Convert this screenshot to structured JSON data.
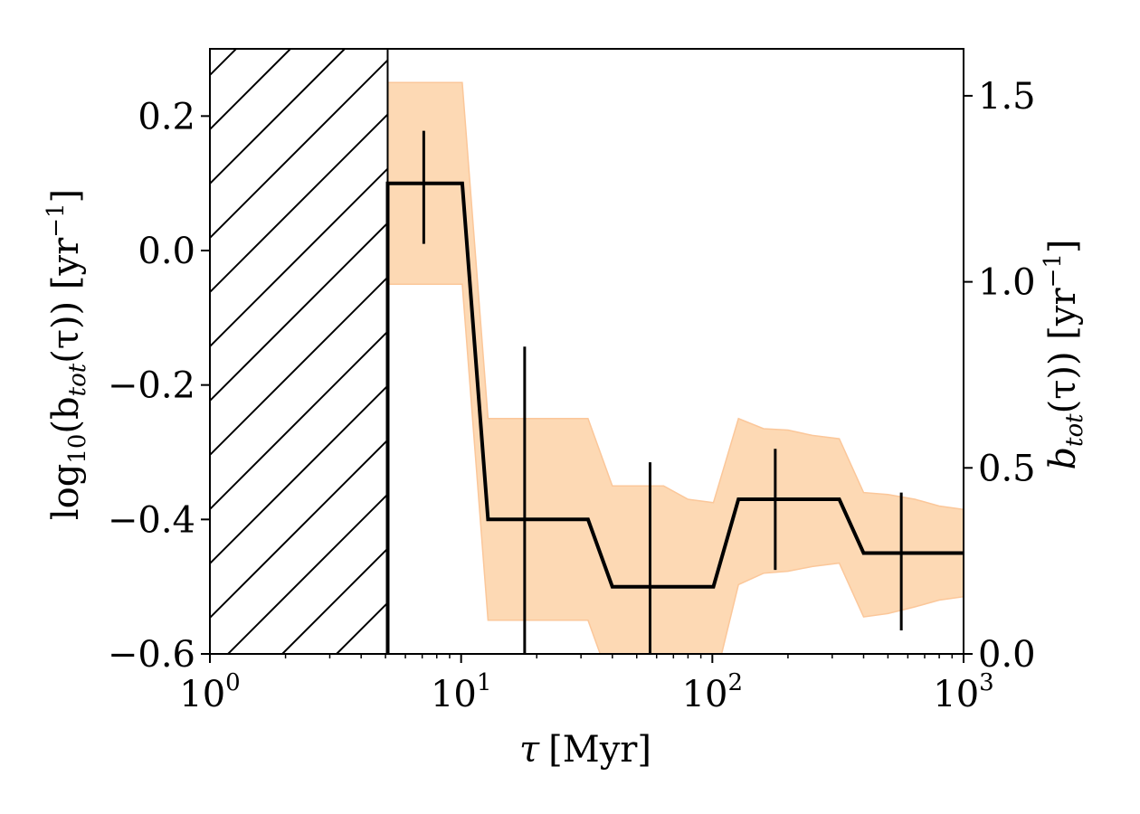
{
  "chart_data": {
    "type": "line",
    "xscale": "log",
    "xlim": [
      1,
      1000
    ],
    "ylim": [
      -0.6,
      0.3
    ],
    "y2lim": [
      0,
      1.6262
    ],
    "x_ticks": [
      1,
      10,
      100,
      1000
    ],
    "x_tick_labels": [
      "10",
      "10",
      "10",
      "10"
    ],
    "x_tick_exponents": [
      "0",
      "1",
      "2",
      "3"
    ],
    "y_ticks": [
      0.2,
      0.0,
      -0.2,
      -0.4,
      -0.6
    ],
    "y_tick_labels": [
      "0.2",
      "0.0",
      "−0.2",
      "−0.4",
      "−0.6"
    ],
    "y2_ticks": [
      1.5,
      1.0,
      0.5,
      0.0
    ],
    "y2_tick_labels": [
      "1.5",
      "1.0",
      "0.5",
      "0.0"
    ],
    "xlabel_main": "τ",
    "xlabel_unit": "[Myr]",
    "ylabel_prefix": "log",
    "ylabel_sub": "10",
    "ylabel_mid": "(b",
    "ylabel_sub2": "tot",
    "ylabel_end": "(τ)) [yr",
    "ylabel_exp": "−1",
    "ylabel_close": "]",
    "y2label_main": "b",
    "y2label_sub": "tot",
    "y2label_end": "(τ)) [yr",
    "y2label_exp": "−1",
    "y2label_close": "]",
    "excluded_region": {
      "x_from": 1,
      "x_to": 5.1,
      "hatch": true
    },
    "step_line": {
      "x": [
        5.1,
        10.1,
        12.8,
        32,
        40,
        64,
        80,
        101,
        127,
        320,
        400,
        1000
      ],
      "y": [
        0.1,
        0.1,
        -0.4,
        -0.4,
        -0.5,
        -0.5,
        -0.5,
        -0.5,
        -0.37,
        -0.37,
        -0.45,
        -0.45
      ]
    },
    "band": {
      "x": [
        5.1,
        10.1,
        12.8,
        32,
        40,
        64,
        80,
        101,
        127,
        160,
        200,
        250,
        320,
        400,
        500,
        640,
        800,
        1000
      ],
      "upper": [
        0.25,
        0.25,
        -0.25,
        -0.25,
        -0.35,
        -0.35,
        -0.37,
        -0.375,
        -0.25,
        -0.265,
        -0.267,
        -0.275,
        -0.28,
        -0.36,
        -0.363,
        -0.37,
        -0.38,
        -0.385
      ],
      "lower": [
        -0.05,
        -0.05,
        -0.55,
        -0.55,
        -0.65,
        -0.65,
        -0.65,
        -0.65,
        -0.497,
        -0.48,
        -0.477,
        -0.47,
        -0.465,
        -0.545,
        -0.54,
        -0.53,
        -0.52,
        -0.515
      ]
    },
    "error_bars": [
      {
        "x": 7.1,
        "y_low": 0.01,
        "y_high": 0.178
      },
      {
        "x": 17.9,
        "y_low": -0.6,
        "y_high": -0.143
      },
      {
        "x": 56.5,
        "y_low": -0.6,
        "y_high": -0.315
      },
      {
        "x": 178,
        "y_low": -0.475,
        "y_high": -0.295
      },
      {
        "x": 565,
        "y_low": -0.565,
        "y_high": -0.36
      }
    ],
    "colors": {
      "line": "#000000",
      "band": "#fdd9b4",
      "band_edge": "#fbc79a",
      "hatch": "#000000"
    },
    "grid": false
  }
}
